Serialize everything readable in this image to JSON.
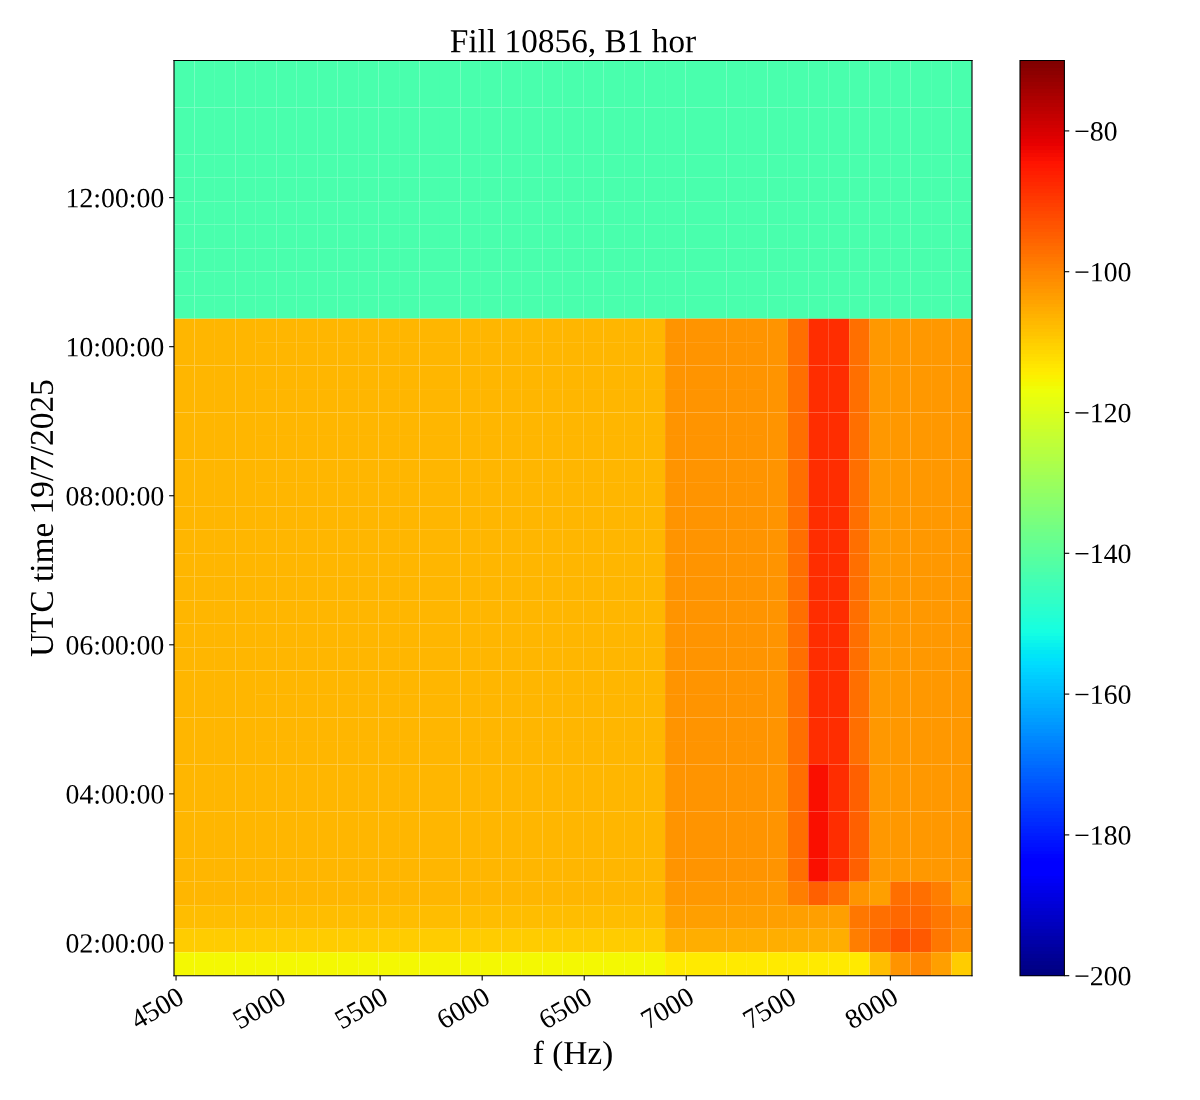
{
  "chart_data": {
    "type": "heatmap",
    "title": "Fill 10856, B1 hor",
    "xlabel": "f (Hz)",
    "ylabel": "UTC time 19/7/2025",
    "xlim": [
      4490,
      8400
    ],
    "xticks": [
      4500,
      5000,
      5500,
      6000,
      6500,
      7000,
      7500,
      8000
    ],
    "ylim": [
      1.56,
      13.84
    ],
    "yticks": [
      {
        "value": 2,
        "label": "02:00:00"
      },
      {
        "value": 4,
        "label": "04:00:00"
      },
      {
        "value": 6,
        "label": "06:00:00"
      },
      {
        "value": 8,
        "label": "08:00:00"
      },
      {
        "value": 10,
        "label": "10:00:00"
      },
      {
        "value": 12,
        "label": "12:00:00"
      }
    ],
    "clim": [
      -200,
      -70
    ],
    "cticks": [
      -200,
      -180,
      -160,
      -140,
      -120,
      -100,
      -80
    ],
    "cells": [
      [
        -143,
        -143,
        -143,
        -143,
        -143,
        -143,
        -143,
        -143,
        -143,
        -143,
        -143,
        -143,
        -143,
        -143,
        -143,
        -143,
        -143,
        -143,
        -143,
        -143,
        -143,
        -143,
        -143,
        -143,
        -143,
        -143,
        -143,
        -143,
        -143,
        -143,
        -143,
        -143,
        -143,
        -143,
        -143,
        -143,
        -143,
        -143,
        -143
      ],
      [
        -143,
        -143,
        -143,
        -143,
        -143,
        -143,
        -143,
        -143,
        -143,
        -143,
        -143,
        -143,
        -143,
        -143,
        -143,
        -143,
        -143,
        -143,
        -143,
        -143,
        -143,
        -143,
        -143,
        -143,
        -143,
        -143,
        -143,
        -143,
        -143,
        -143,
        -143,
        -143,
        -143,
        -143,
        -143,
        -143,
        -143,
        -143,
        -143
      ],
      [
        -143,
        -143,
        -143,
        -143,
        -143,
        -143,
        -143,
        -143,
        -143,
        -143,
        -143,
        -143,
        -143,
        -143,
        -143,
        -143,
        -143,
        -143,
        -143,
        -143,
        -143,
        -143,
        -143,
        -143,
        -143,
        -143,
        -143,
        -143,
        -143,
        -143,
        -143,
        -143,
        -143,
        -143,
        -143,
        -143,
        -143,
        -143,
        -143
      ],
      [
        -143,
        -143,
        -143,
        -143,
        -143,
        -143,
        -143,
        -143,
        -143,
        -143,
        -143,
        -143,
        -143,
        -143,
        -143,
        -143,
        -143,
        -143,
        -143,
        -143,
        -143,
        -143,
        -143,
        -143,
        -143,
        -143,
        -143,
        -143,
        -143,
        -143,
        -143,
        -143,
        -143,
        -143,
        -143,
        -143,
        -143,
        -143,
        -143
      ],
      [
        -143,
        -143,
        -143,
        -143,
        -143,
        -143,
        -143,
        -143,
        -143,
        -143,
        -143,
        -143,
        -143,
        -143,
        -143,
        -143,
        -143,
        -143,
        -143,
        -143,
        -143,
        -143,
        -143,
        -143,
        -143,
        -143,
        -143,
        -143,
        -143,
        -143,
        -143,
        -143,
        -143,
        -143,
        -143,
        -143,
        -143,
        -143,
        -143
      ],
      [
        -143,
        -143,
        -143,
        -143,
        -143,
        -143,
        -143,
        -143,
        -143,
        -143,
        -143,
        -143,
        -143,
        -143,
        -143,
        -143,
        -143,
        -143,
        -143,
        -143,
        -143,
        -143,
        -143,
        -143,
        -143,
        -143,
        -143,
        -143,
        -143,
        -143,
        -143,
        -143,
        -143,
        -143,
        -143,
        -143,
        -143,
        -143,
        -143
      ],
      [
        -143,
        -143,
        -143,
        -143,
        -143,
        -143,
        -143,
        -143,
        -143,
        -143,
        -143,
        -143,
        -143,
        -143,
        -143,
        -143,
        -143,
        -143,
        -143,
        -143,
        -143,
        -143,
        -143,
        -143,
        -143,
        -143,
        -143,
        -143,
        -143,
        -143,
        -143,
        -143,
        -143,
        -143,
        -143,
        -143,
        -143,
        -143,
        -143
      ],
      [
        -143,
        -143,
        -143,
        -143,
        -143,
        -143,
        -143,
        -143,
        -143,
        -143,
        -143,
        -143,
        -143,
        -143,
        -143,
        -143,
        -143,
        -143,
        -143,
        -143,
        -143,
        -143,
        -143,
        -143,
        -143,
        -143,
        -143,
        -143,
        -143,
        -143,
        -143,
        -143,
        -143,
        -143,
        -143,
        -143,
        -143,
        -143,
        -143
      ],
      [
        -143,
        -143,
        -143,
        -143,
        -143,
        -143,
        -143,
        -143,
        -143,
        -143,
        -143,
        -143,
        -143,
        -143,
        -143,
        -143,
        -143,
        -143,
        -143,
        -143,
        -143,
        -143,
        -143,
        -143,
        -143,
        -143,
        -143,
        -143,
        -143,
        -143,
        -143,
        -143,
        -143,
        -143,
        -143,
        -143,
        -143,
        -143,
        -143
      ],
      [
        -143,
        -143,
        -143,
        -143,
        -143,
        -143,
        -143,
        -143,
        -143,
        -143,
        -143,
        -143,
        -143,
        -143,
        -143,
        -143,
        -143,
        -143,
        -143,
        -143,
        -143,
        -143,
        -143,
        -143,
        -143,
        -143,
        -143,
        -143,
        -143,
        -143,
        -143,
        -143,
        -143,
        -143,
        -143,
        -143,
        -143,
        -143,
        -143
      ],
      [
        -143,
        -143,
        -143,
        -143,
        -143,
        -143,
        -143,
        -143,
        -143,
        -143,
        -143,
        -143,
        -143,
        -143,
        -143,
        -143,
        -143,
        -143,
        -143,
        -143,
        -143,
        -143,
        -143,
        -143,
        -143,
        -143,
        -143,
        -143,
        -143,
        -143,
        -143,
        -143,
        -143,
        -143,
        -143,
        -143,
        -143,
        -143,
        -143
      ],
      [
        -107,
        -107,
        -107,
        -107,
        -107,
        -107,
        -107,
        -107,
        -107,
        -107,
        -107,
        -107,
        -107,
        -107,
        -107,
        -107,
        -107,
        -107,
        -107,
        -107,
        -107,
        -107,
        -107,
        -107,
        -102,
        -102,
        -102,
        -102,
        -102,
        -102,
        -97,
        -88,
        -88,
        -97,
        -103,
        -103,
        -103,
        -103,
        -103
      ],
      [
        -107,
        -107,
        -107,
        -107,
        -107,
        -107,
        -107,
        -107,
        -107,
        -107,
        -107,
        -107,
        -107,
        -107,
        -107,
        -107,
        -107,
        -107,
        -107,
        -107,
        -107,
        -107,
        -107,
        -107,
        -102,
        -102,
        -102,
        -102,
        -102,
        -102,
        -97,
        -88,
        -88,
        -97,
        -103,
        -103,
        -103,
        -103,
        -103
      ],
      [
        -107,
        -107,
        -107,
        -107,
        -107,
        -107,
        -107,
        -107,
        -107,
        -107,
        -107,
        -107,
        -107,
        -107,
        -107,
        -107,
        -107,
        -107,
        -107,
        -107,
        -107,
        -107,
        -107,
        -107,
        -102,
        -102,
        -102,
        -102,
        -102,
        -102,
        -97,
        -88,
        -88,
        -97,
        -103,
        -103,
        -103,
        -103,
        -103
      ],
      [
        -107,
        -107,
        -107,
        -107,
        -107,
        -107,
        -107,
        -107,
        -107,
        -107,
        -107,
        -107,
        -107,
        -107,
        -107,
        -107,
        -107,
        -107,
        -107,
        -107,
        -107,
        -107,
        -107,
        -107,
        -102,
        -102,
        -102,
        -102,
        -102,
        -102,
        -97,
        -88,
        -88,
        -97,
        -103,
        -103,
        -103,
        -103,
        -103
      ],
      [
        -107,
        -107,
        -107,
        -107,
        -107,
        -107,
        -107,
        -107,
        -107,
        -107,
        -107,
        -107,
        -107,
        -107,
        -107,
        -107,
        -107,
        -107,
        -107,
        -107,
        -107,
        -107,
        -107,
        -107,
        -102,
        -102,
        -102,
        -102,
        -102,
        -102,
        -97,
        -88,
        -88,
        -97,
        -103,
        -103,
        -103,
        -103,
        -103
      ],
      [
        -107,
        -107,
        -107,
        -107,
        -107,
        -107,
        -107,
        -107,
        -107,
        -107,
        -107,
        -107,
        -107,
        -107,
        -107,
        -107,
        -107,
        -107,
        -107,
        -107,
        -107,
        -107,
        -107,
        -107,
        -102,
        -102,
        -102,
        -102,
        -102,
        -102,
        -97,
        -88,
        -88,
        -97,
        -103,
        -103,
        -103,
        -103,
        -103
      ],
      [
        -107,
        -107,
        -107,
        -107,
        -107,
        -107,
        -107,
        -107,
        -107,
        -107,
        -107,
        -107,
        -107,
        -107,
        -107,
        -107,
        -107,
        -107,
        -107,
        -107,
        -107,
        -107,
        -107,
        -107,
        -102,
        -102,
        -102,
        -102,
        -102,
        -102,
        -97,
        -88,
        -88,
        -97,
        -103,
        -103,
        -103,
        -103,
        -103
      ],
      [
        -107,
        -107,
        -107,
        -107,
        -107,
        -107,
        -107,
        -107,
        -107,
        -107,
        -107,
        -107,
        -107,
        -107,
        -107,
        -107,
        -107,
        -107,
        -107,
        -107,
        -107,
        -107,
        -107,
        -107,
        -102,
        -102,
        -102,
        -102,
        -102,
        -102,
        -97,
        -88,
        -88,
        -97,
        -103,
        -103,
        -103,
        -103,
        -103
      ],
      [
        -107,
        -107,
        -107,
        -107,
        -107,
        -107,
        -107,
        -107,
        -107,
        -107,
        -107,
        -107,
        -107,
        -107,
        -107,
        -107,
        -107,
        -107,
        -107,
        -107,
        -107,
        -107,
        -107,
        -107,
        -102,
        -102,
        -102,
        -102,
        -102,
        -102,
        -97,
        -88,
        -88,
        -97,
        -103,
        -103,
        -103,
        -103,
        -103
      ],
      [
        -107,
        -107,
        -107,
        -107,
        -107,
        -107,
        -107,
        -107,
        -107,
        -107,
        -107,
        -107,
        -107,
        -107,
        -107,
        -107,
        -107,
        -107,
        -107,
        -107,
        -107,
        -107,
        -107,
        -107,
        -102,
        -102,
        -102,
        -102,
        -102,
        -102,
        -97,
        -88,
        -88,
        -97,
        -103,
        -103,
        -103,
        -103,
        -103
      ],
      [
        -107,
        -107,
        -107,
        -107,
        -107,
        -107,
        -107,
        -107,
        -107,
        -107,
        -107,
        -107,
        -107,
        -107,
        -107,
        -107,
        -107,
        -107,
        -107,
        -107,
        -107,
        -107,
        -107,
        -107,
        -102,
        -102,
        -102,
        -102,
        -102,
        -102,
        -97,
        -88,
        -88,
        -97,
        -103,
        -103,
        -103,
        -103,
        -103
      ],
      [
        -107,
        -107,
        -107,
        -107,
        -107,
        -107,
        -107,
        -107,
        -107,
        -107,
        -107,
        -107,
        -107,
        -107,
        -107,
        -107,
        -107,
        -107,
        -107,
        -107,
        -107,
        -107,
        -107,
        -107,
        -102,
        -102,
        -102,
        -102,
        -102,
        -102,
        -97,
        -88,
        -88,
        -97,
        -103,
        -103,
        -103,
        -103,
        -103
      ],
      [
        -107,
        -107,
        -107,
        -107,
        -107,
        -107,
        -107,
        -107,
        -107,
        -107,
        -107,
        -107,
        -107,
        -107,
        -107,
        -107,
        -107,
        -107,
        -107,
        -107,
        -107,
        -107,
        -107,
        -107,
        -102,
        -102,
        -102,
        -102,
        -102,
        -102,
        -97,
        -88,
        -88,
        -97,
        -103,
        -103,
        -103,
        -103,
        -103
      ],
      [
        -107,
        -107,
        -107,
        -107,
        -107,
        -107,
        -107,
        -107,
        -107,
        -107,
        -107,
        -107,
        -107,
        -107,
        -107,
        -107,
        -107,
        -107,
        -107,
        -107,
        -107,
        -107,
        -107,
        -107,
        -102,
        -102,
        -102,
        -102,
        -102,
        -102,
        -97,
        -88,
        -88,
        -97,
        -103,
        -103,
        -103,
        -103,
        -103
      ],
      [
        -107,
        -107,
        -107,
        -107,
        -107,
        -107,
        -107,
        -107,
        -107,
        -107,
        -107,
        -107,
        -107,
        -107,
        -107,
        -107,
        -107,
        -107,
        -107,
        -107,
        -107,
        -107,
        -107,
        -107,
        -102,
        -102,
        -102,
        -102,
        -102,
        -102,
        -97,
        -88,
        -88,
        -97,
        -103,
        -103,
        -103,
        -103,
        -103
      ],
      [
        -107,
        -107,
        -107,
        -107,
        -107,
        -107,
        -107,
        -107,
        -107,
        -107,
        -107,
        -107,
        -107,
        -107,
        -107,
        -107,
        -107,
        -107,
        -107,
        -107,
        -107,
        -107,
        -107,
        -107,
        -102,
        -102,
        -102,
        -102,
        -102,
        -102,
        -97,
        -88,
        -88,
        -97,
        -103,
        -103,
        -103,
        -103,
        -103
      ],
      [
        -107,
        -107,
        -107,
        -107,
        -107,
        -107,
        -107,
        -107,
        -107,
        -107,
        -107,
        -107,
        -107,
        -107,
        -107,
        -107,
        -107,
        -107,
        -107,
        -107,
        -107,
        -107,
        -107,
        -107,
        -102,
        -102,
        -102,
        -102,
        -102,
        -102,
        -97,
        -88,
        -88,
        -97,
        -103,
        -103,
        -103,
        -103,
        -103
      ],
      [
        -107,
        -107,
        -107,
        -107,
        -107,
        -107,
        -107,
        -107,
        -107,
        -107,
        -107,
        -107,
        -107,
        -107,
        -107,
        -107,
        -107,
        -107,
        -107,
        -107,
        -107,
        -107,
        -107,
        -107,
        -102,
        -102,
        -102,
        -102,
        -102,
        -102,
        -97,
        -88,
        -88,
        -97,
        -103,
        -103,
        -103,
        -103,
        -103
      ],
      [
        -107,
        -107,
        -107,
        -107,
        -107,
        -107,
        -107,
        -107,
        -107,
        -107,
        -107,
        -107,
        -107,
        -107,
        -107,
        -107,
        -107,
        -107,
        -107,
        -107,
        -107,
        -107,
        -107,
        -107,
        -102,
        -102,
        -102,
        -102,
        -102,
        -102,
        -97,
        -88,
        -88,
        -97,
        -103,
        -103,
        -103,
        -103,
        -103
      ],
      [
        -107,
        -107,
        -107,
        -107,
        -107,
        -107,
        -107,
        -107,
        -107,
        -107,
        -107,
        -107,
        -107,
        -107,
        -107,
        -107,
        -107,
        -107,
        -107,
        -107,
        -107,
        -107,
        -107,
        -107,
        -102,
        -102,
        -102,
        -102,
        -102,
        -102,
        -97,
        -84,
        -88,
        -95,
        -103,
        -103,
        -103,
        -103,
        -103
      ],
      [
        -107,
        -107,
        -107,
        -107,
        -107,
        -107,
        -107,
        -107,
        -107,
        -107,
        -107,
        -107,
        -107,
        -107,
        -107,
        -107,
        -107,
        -107,
        -107,
        -107,
        -107,
        -107,
        -107,
        -107,
        -102,
        -102,
        -102,
        -102,
        -102,
        -102,
        -97,
        -84,
        -88,
        -95,
        -103,
        -103,
        -103,
        -103,
        -103
      ],
      [
        -107,
        -107,
        -107,
        -107,
        -107,
        -107,
        -107,
        -107,
        -107,
        -107,
        -107,
        -107,
        -107,
        -107,
        -107,
        -107,
        -107,
        -107,
        -107,
        -107,
        -107,
        -107,
        -107,
        -107,
        -102,
        -102,
        -102,
        -102,
        -102,
        -102,
        -97,
        -84,
        -88,
        -95,
        -103,
        -103,
        -103,
        -103,
        -103
      ],
      [
        -107,
        -107,
        -107,
        -107,
        -107,
        -107,
        -107,
        -107,
        -107,
        -107,
        -107,
        -107,
        -107,
        -107,
        -107,
        -107,
        -107,
        -107,
        -107,
        -107,
        -107,
        -107,
        -107,
        -107,
        -102,
        -102,
        -102,
        -102,
        -102,
        -102,
        -97,
        -84,
        -88,
        -95,
        -103,
        -103,
        -103,
        -103,
        -103
      ],
      [
        -107,
        -107,
        -107,
        -107,
        -107,
        -107,
        -107,
        -107,
        -107,
        -107,
        -107,
        -107,
        -107,
        -107,
        -107,
        -107,
        -107,
        -107,
        -107,
        -107,
        -107,
        -107,
        -107,
        -107,
        -102,
        -102,
        -102,
        -102,
        -102,
        -102,
        -97,
        -84,
        -88,
        -95,
        -103,
        -103,
        -103,
        -103,
        -103
      ],
      [
        -107,
        -107,
        -107,
        -107,
        -107,
        -107,
        -107,
        -107,
        -107,
        -107,
        -107,
        -107,
        -107,
        -107,
        -107,
        -107,
        -107,
        -107,
        -107,
        -107,
        -107,
        -107,
        -107,
        -107,
        -103,
        -103,
        -103,
        -103,
        -103,
        -103,
        -99,
        -95,
        -97,
        -102,
        -104,
        -97,
        -97,
        -99,
        -104
      ],
      [
        -108,
        -108,
        -108,
        -108,
        -108,
        -108,
        -108,
        -108,
        -108,
        -108,
        -108,
        -108,
        -108,
        -108,
        -108,
        -108,
        -108,
        -108,
        -108,
        -108,
        -108,
        -108,
        -108,
        -108,
        -104,
        -104,
        -104,
        -104,
        -104,
        -104,
        -104,
        -104,
        -104,
        -98,
        -97,
        -96,
        -96,
        -98,
        -100
      ],
      [
        -110,
        -110,
        -110,
        -110,
        -110,
        -110,
        -110,
        -110,
        -110,
        -110,
        -110,
        -110,
        -110,
        -110,
        -110,
        -110,
        -110,
        -110,
        -110,
        -110,
        -110,
        -110,
        -110,
        -110,
        -106,
        -106,
        -106,
        -106,
        -106,
        -106,
        -106,
        -106,
        -106,
        -99,
        -96,
        -93,
        -94,
        -98,
        -101
      ],
      [
        -116,
        -116,
        -116,
        -116,
        -116,
        -116,
        -116,
        -116,
        -116,
        -116,
        -116,
        -116,
        -116,
        -116,
        -116,
        -116,
        -116,
        -116,
        -116,
        -116,
        -116,
        -116,
        -116,
        -116,
        -114,
        -114,
        -114,
        -114,
        -114,
        -114,
        -114,
        -114,
        -114,
        -114,
        -108,
        -102,
        -100,
        -104,
        -110
      ]
    ]
  }
}
